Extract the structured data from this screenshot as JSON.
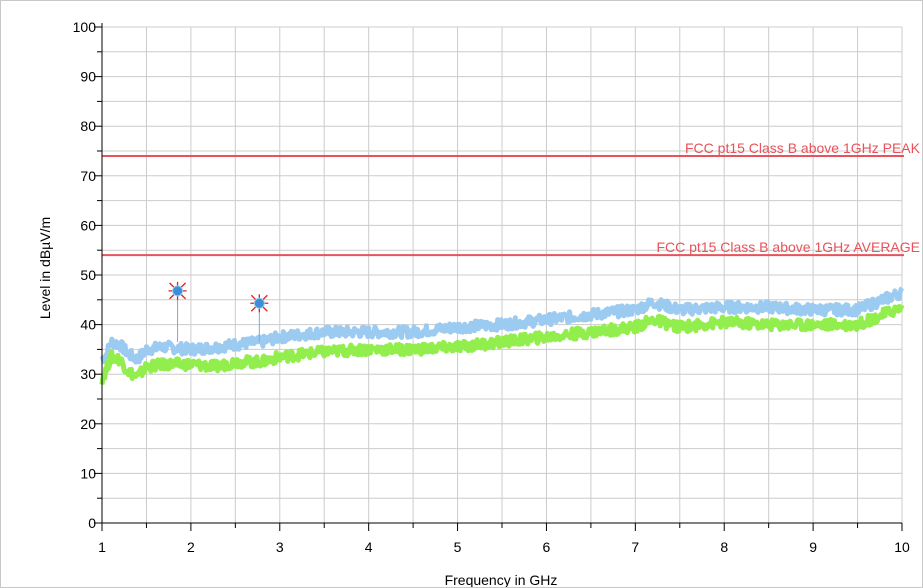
{
  "chart_data": {
    "type": "line",
    "title": "",
    "xlabel": "Frequency in GHz",
    "ylabel": "Level in dBµV/m",
    "xlim": [
      1,
      10
    ],
    "ylim": [
      0,
      100
    ],
    "x_ticks": [
      "1",
      "2",
      "3",
      "4",
      "5",
      "6",
      "7",
      "8",
      "9",
      "10"
    ],
    "y_ticks": [
      "0",
      "10",
      "20",
      "30",
      "40",
      "50",
      "60",
      "70",
      "80",
      "90",
      "100"
    ],
    "grid": true,
    "limit_lines": [
      {
        "label": "FCC pt15 Class B above 1GHz PEAK",
        "value": 74,
        "color": "#e8525a"
      },
      {
        "label": "FCC pt15 Class B above 1GHz AVERAGE",
        "value": 54,
        "color": "#e8525a"
      }
    ],
    "series": [
      {
        "color": "#9ccbf2",
        "x": [
          1.0,
          1.05,
          1.1,
          1.2,
          1.3,
          1.4,
          1.5,
          1.7,
          2.0,
          2.3,
          2.5,
          2.8,
          3.0,
          3.5,
          4.0,
          4.5,
          5.0,
          5.5,
          6.0,
          6.5,
          7.0,
          7.2,
          7.5,
          8.0,
          8.5,
          9.0,
          9.5,
          10.0
        ],
        "y": [
          33,
          34,
          36.5,
          36,
          34,
          33,
          35,
          35.5,
          35,
          35.5,
          36,
          36.5,
          37.5,
          38.5,
          38.5,
          38.5,
          39.5,
          40,
          41,
          42,
          43,
          44.5,
          43,
          43.5,
          43.5,
          43,
          43,
          46.5
        ]
      },
      {
        "color": "#92ee4c",
        "x": [
          1.0,
          1.05,
          1.1,
          1.2,
          1.3,
          1.4,
          1.5,
          1.7,
          2.0,
          2.3,
          2.5,
          2.8,
          3.0,
          3.5,
          4.0,
          4.5,
          5.0,
          5.5,
          6.0,
          6.5,
          7.0,
          7.2,
          7.5,
          8.0,
          8.5,
          9.0,
          9.5,
          10.0
        ],
        "y": [
          29,
          31,
          33.5,
          33,
          30.5,
          29.5,
          31.5,
          32,
          32,
          31.5,
          32.5,
          32.5,
          33.5,
          34.5,
          35,
          35,
          35.5,
          36.5,
          37.5,
          38.5,
          39.5,
          41,
          39.5,
          40.5,
          40,
          40,
          40,
          43.5
        ]
      }
    ],
    "markers": [
      {
        "x": 1.85,
        "y": 46.8
      },
      {
        "x": 2.77,
        "y": 44.3
      }
    ]
  }
}
